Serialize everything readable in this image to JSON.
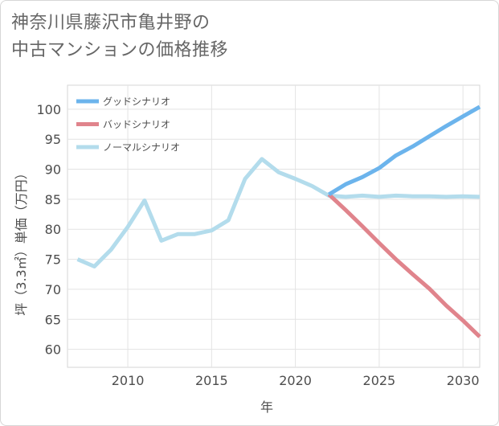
{
  "title": {
    "line1": "神奈川県藤沢市亀井野の",
    "line2": "中古マンションの価格推移"
  },
  "chart_data": {
    "type": "line",
    "xlabel": "年",
    "ylabel": "坪（3.3㎡）単価（万円）",
    "xlim": [
      2006.4,
      2031
    ],
    "ylim": [
      57,
      104
    ],
    "x_ticks": [
      2010,
      2015,
      2020,
      2025,
      2030
    ],
    "y_ticks": [
      60,
      65,
      70,
      75,
      80,
      85,
      90,
      95,
      100
    ],
    "grid": true,
    "legend_position": "top-left",
    "series": [
      {
        "name": "グッドシナリオ",
        "color": "#6cb4ec",
        "x": [
          2022,
          2023,
          2024,
          2025,
          2026,
          2027,
          2028,
          2029,
          2030,
          2031
        ],
        "y": [
          85.8,
          87.5,
          88.7,
          90.2,
          92.3,
          93.8,
          95.5,
          97.2,
          98.8,
          100.4
        ]
      },
      {
        "name": "バッドシナリオ",
        "color": "#e0848c",
        "x": [
          2022,
          2023,
          2024,
          2025,
          2026,
          2027,
          2028,
          2029,
          2030,
          2031
        ],
        "y": [
          85.8,
          83.2,
          80.5,
          77.7,
          75.0,
          72.5,
          70.1,
          67.3,
          64.8,
          62.1
        ]
      },
      {
        "name": "ノーマルシナリオ",
        "color": "#b3dcec",
        "x": [
          2007,
          2008,
          2009,
          2010,
          2011,
          2012,
          2013,
          2014,
          2015,
          2016,
          2017,
          2018,
          2019,
          2020,
          2021,
          2022,
          2023,
          2024,
          2025,
          2026,
          2027,
          2028,
          2029,
          2030,
          2031
        ],
        "y": [
          75.0,
          73.8,
          76.6,
          80.4,
          84.8,
          78.1,
          79.2,
          79.2,
          79.8,
          81.5,
          88.4,
          91.7,
          89.5,
          88.4,
          87.2,
          85.6,
          85.4,
          85.6,
          85.4,
          85.6,
          85.5,
          85.5,
          85.4,
          85.5,
          85.4
        ]
      }
    ]
  }
}
